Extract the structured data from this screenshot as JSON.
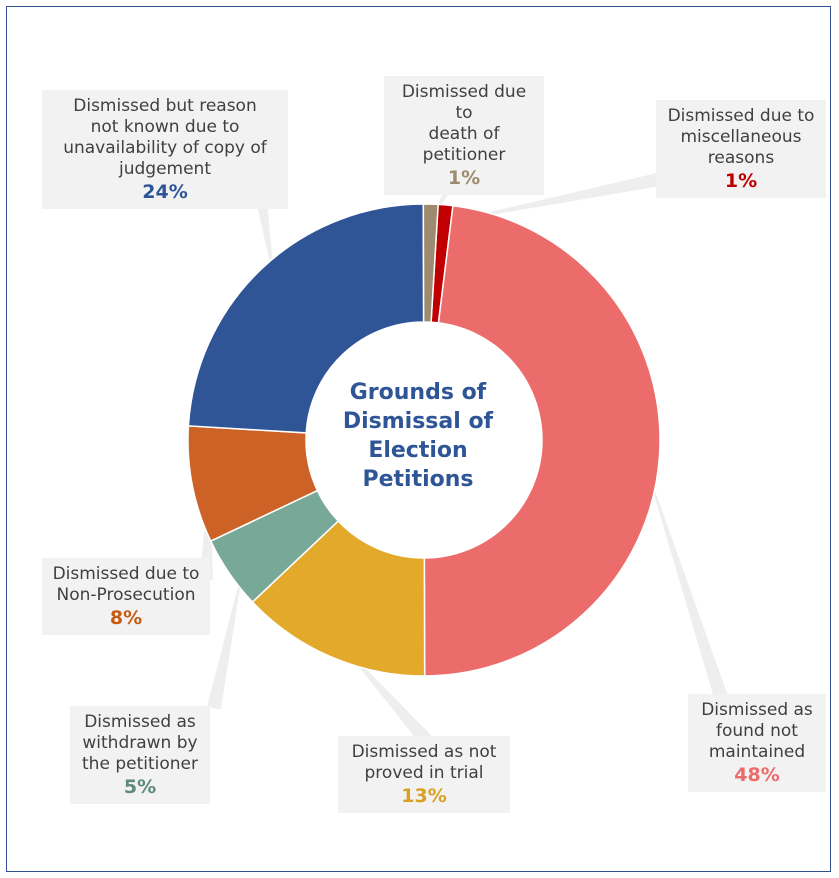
{
  "chart_data": {
    "type": "pie",
    "title": "Grounds of Dismissal of Election Petitions",
    "slices": [
      {
        "label": "Dismissed due to miscellaneous reasons",
        "value": 1,
        "value_label": "1%",
        "color": "#c00000"
      },
      {
        "label": "Dismissed as found not maintained",
        "value": 48,
        "value_label": "48%",
        "color": "#ec6b6b"
      },
      {
        "label": "Dismissed as not proved in trial",
        "value": 13,
        "value_label": "13%",
        "color": "#e3a92b"
      },
      {
        "label": "Dismissed as withdrawn by the petitioner",
        "value": 5,
        "value_label": "5%",
        "color": "#78a898"
      },
      {
        "label": "Dismissed due to Non-Prosecution",
        "value": 8,
        "value_label": "8%",
        "color": "#cc6226"
      },
      {
        "label": "Dismissed but reason not known due to unavailability of copy of judgement",
        "value": 24,
        "value_label": "24%",
        "color": "#2f5597"
      },
      {
        "label": "Dismissed due to death of petitioner",
        "value": 1,
        "value_label": "1%",
        "color": "#9e8a6e"
      }
    ]
  },
  "labels": {
    "misc": {
      "text_lines": [
        "Dismissed due to",
        "miscellaneous",
        "reasons"
      ],
      "pct": "1%",
      "color": "#c00000"
    },
    "found": {
      "text_lines": [
        "Dismissed as",
        "found not",
        "maintained"
      ],
      "pct": "48%",
      "color": "#ec6b6b"
    },
    "trial": {
      "text_lines": [
        "Dismissed as not",
        "proved in trial"
      ],
      "pct": "13%",
      "color": "#d9a021"
    },
    "withdrawn": {
      "text_lines": [
        "Dismissed as",
        "withdrawn by",
        "the petitioner"
      ],
      "pct": "5%",
      "color": "#5e8a78"
    },
    "nonpros": {
      "text_lines": [
        "Dismissed due to",
        "Non-Prosecution"
      ],
      "pct": "8%",
      "color": "#c55a11"
    },
    "unknown": {
      "text_lines": [
        "Dismissed but reason",
        "not known due to",
        "unavailability of copy of",
        "judgement"
      ],
      "pct": "24%",
      "color": "#2f5597"
    },
    "death": {
      "text_lines": [
        "Dismissed due to",
        "death of",
        "petitioner"
      ],
      "pct": "1%",
      "color": "#9e8a6e"
    }
  }
}
